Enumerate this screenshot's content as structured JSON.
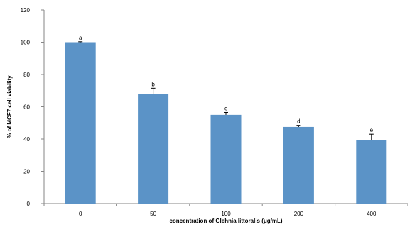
{
  "chart_data": {
    "type": "bar",
    "categories": [
      "0",
      "50",
      "100",
      "200",
      "400"
    ],
    "values": [
      100,
      68,
      55,
      47.5,
      39.5
    ],
    "errors": [
      0.3,
      3.5,
      1.5,
      1,
      3.5
    ],
    "letters": [
      "a",
      "b",
      "c",
      "d",
      "e"
    ],
    "title": "",
    "xlabel": "concentration of Glehnia littoralis (μg/mL)",
    "ylabel": "% of MCF7 cell viability",
    "ylim": [
      0,
      120
    ],
    "yticks": [
      "0",
      "20",
      "40",
      "60",
      "80",
      "100",
      "120"
    ],
    "grid": false,
    "legend": "none",
    "colors": {
      "bar": "#5b93c7",
      "axis": "#868686",
      "error": "#000000"
    }
  }
}
